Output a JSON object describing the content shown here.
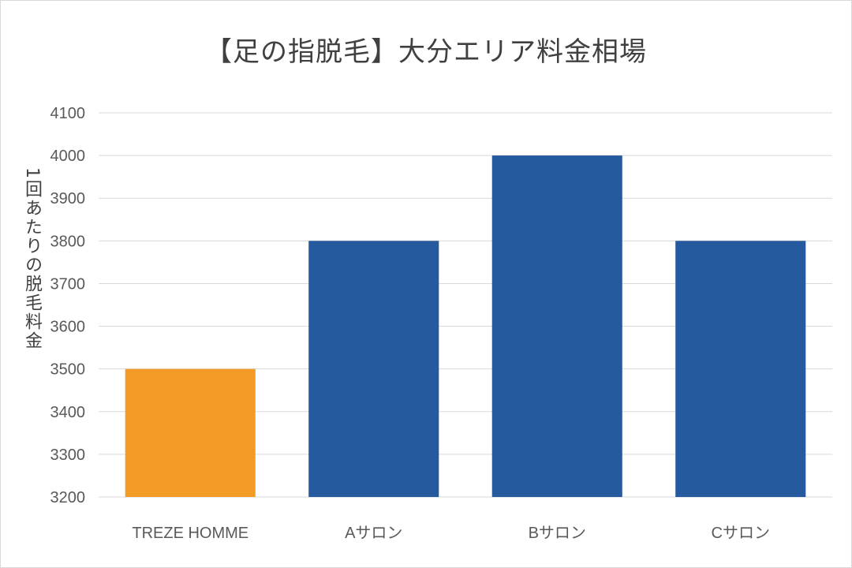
{
  "chart_data": {
    "type": "bar",
    "title": "【足の指脱毛】大分エリア料金相場",
    "xlabel": "",
    "ylabel": "1回あたりの脱毛料金",
    "categories": [
      "TREZE HOMME",
      "Aサロン",
      "Bサロン",
      "Cサロン"
    ],
    "values": [
      3500,
      3800,
      4000,
      3800
    ],
    "bar_colors": [
      "#F29B26",
      "#255A9E",
      "#255A9E",
      "#255A9E"
    ],
    "ylim": [
      3200,
      4100
    ],
    "yticks": [
      3200,
      3300,
      3400,
      3500,
      3600,
      3700,
      3800,
      3900,
      4000,
      4100
    ],
    "grid": true,
    "legend": "none"
  }
}
